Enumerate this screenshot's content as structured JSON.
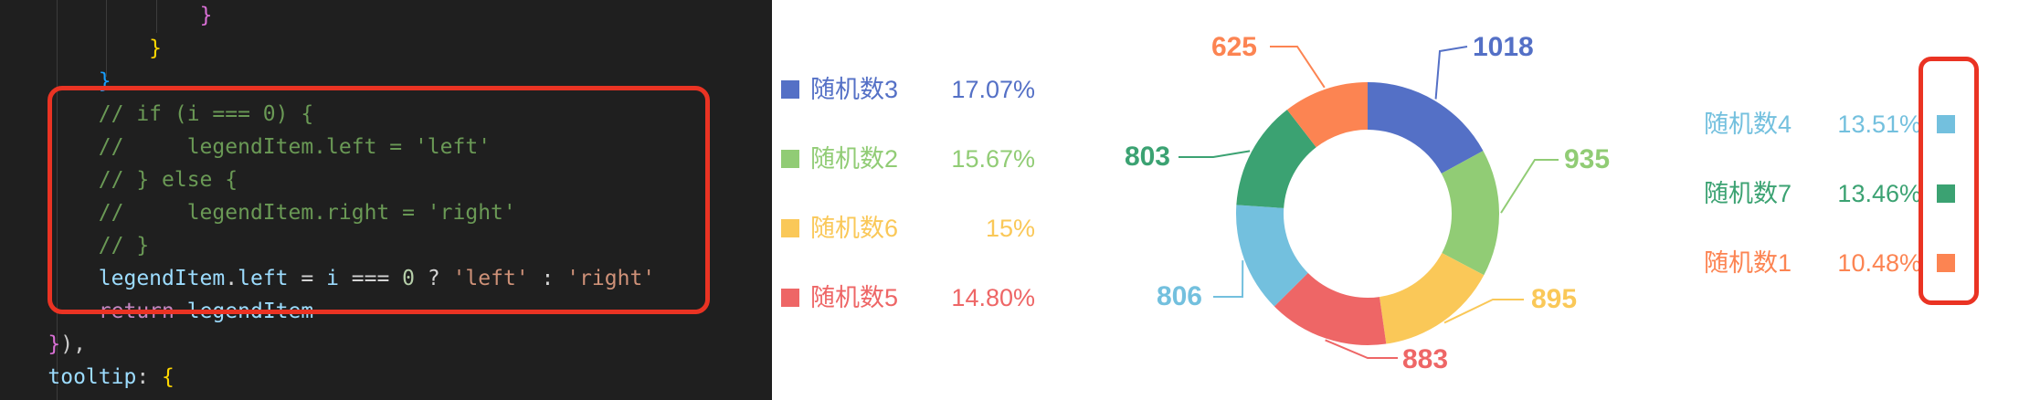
{
  "editor": {
    "lines": [
      [
        {
          "t": "                ",
          "c": "t-text"
        },
        {
          "t": "}",
          "c": "t-bracket-purple"
        }
      ],
      [
        {
          "t": "            ",
          "c": "t-text"
        },
        {
          "t": "}",
          "c": "t-bracket-yellow"
        }
      ],
      [
        {
          "t": "        ",
          "c": "t-text"
        },
        {
          "t": "}",
          "c": "t-bracket-blue"
        }
      ],
      [
        {
          "t": "        ",
          "c": "t-text"
        },
        {
          "t": "// if (i === 0) {",
          "c": "t-comment"
        }
      ],
      [
        {
          "t": "        ",
          "c": "t-text"
        },
        {
          "t": "//     legendItem.left = 'left'",
          "c": "t-comment"
        }
      ],
      [
        {
          "t": "        ",
          "c": "t-text"
        },
        {
          "t": "// } else {",
          "c": "t-comment"
        }
      ],
      [
        {
          "t": "        ",
          "c": "t-text"
        },
        {
          "t": "//     legendItem.right = 'right'",
          "c": "t-comment"
        }
      ],
      [
        {
          "t": "        ",
          "c": "t-text"
        },
        {
          "t": "// }",
          "c": "t-comment"
        }
      ],
      [
        {
          "t": "        ",
          "c": "t-text"
        },
        {
          "t": "legendItem",
          "c": "t-var"
        },
        {
          "t": ".",
          "c": "t-op"
        },
        {
          "t": "left",
          "c": "t-prop"
        },
        {
          "t": " = ",
          "c": "t-op"
        },
        {
          "t": "i",
          "c": "t-var"
        },
        {
          "t": " === ",
          "c": "t-op"
        },
        {
          "t": "0",
          "c": "t-num"
        },
        {
          "t": " ? ",
          "c": "t-op"
        },
        {
          "t": "'left'",
          "c": "t-str"
        },
        {
          "t": " : ",
          "c": "t-op"
        },
        {
          "t": "'right'",
          "c": "t-str"
        }
      ],
      [
        {
          "t": "        ",
          "c": "t-text"
        },
        {
          "t": "return",
          "c": "t-kw"
        },
        {
          "t": " ",
          "c": "t-text"
        },
        {
          "t": "legendItem",
          "c": "t-var"
        }
      ],
      [
        {
          "t": "    ",
          "c": "t-text"
        },
        {
          "t": "}",
          "c": "t-bracket-purple"
        },
        {
          "t": "),",
          "c": "t-text"
        }
      ],
      [
        {
          "t": "    ",
          "c": "t-text"
        },
        {
          "t": "tooltip",
          "c": "t-prop"
        },
        {
          "t": ": ",
          "c": "t-text"
        },
        {
          "t": "{",
          "c": "t-bracket-yellow"
        }
      ]
    ]
  },
  "legend_left": [
    {
      "name": "随机数3",
      "percent": "17.07%",
      "color": "#5470c6"
    },
    {
      "name": "随机数2",
      "percent": "15.67%",
      "color": "#91cc75"
    },
    {
      "name": "随机数6",
      "percent": "15%",
      "color": "#fac858"
    },
    {
      "name": "随机数5",
      "percent": "14.80%",
      "color": "#ee6666"
    }
  ],
  "legend_right": [
    {
      "name": "随机数4",
      "percent": "13.51%",
      "color": "#73c0de"
    },
    {
      "name": "随机数7",
      "percent": "13.46%",
      "color": "#3ba272"
    },
    {
      "name": "随机数1",
      "percent": "10.48%",
      "color": "#fc8452"
    }
  ],
  "chart_data": {
    "type": "pie",
    "variant": "donut",
    "slices": [
      {
        "name": "随机数3",
        "value": 1018,
        "color": "#5470c6"
      },
      {
        "name": "随机数2",
        "value": 935,
        "color": "#91cc75"
      },
      {
        "name": "随机数6",
        "value": 895,
        "color": "#fac858"
      },
      {
        "name": "随机数5",
        "value": 883,
        "color": "#ee6666"
      },
      {
        "name": "随机数4",
        "value": 806,
        "color": "#73c0de"
      },
      {
        "name": "随机数7",
        "value": 803,
        "color": "#3ba272"
      },
      {
        "name": "随机数1",
        "value": 625,
        "color": "#fc8452"
      }
    ],
    "start": "top, clockwise",
    "title": ""
  }
}
